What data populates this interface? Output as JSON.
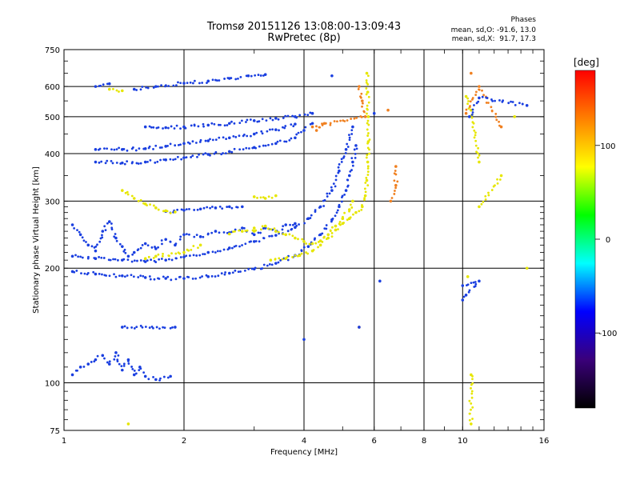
{
  "header": {
    "title": "Tromsø 20151126 13:08:00-13:09:43",
    "subtitle": "RwPretec (8p)",
    "stats_title": "Phases",
    "stats_o": "mean, sd,O: -91.6, 13.0",
    "stats_x": "mean, sd,X:  91.7, 17.3"
  },
  "chart_data": {
    "type": "scatter",
    "title": "Tromsø 20151126 13:08:00-13:09:43",
    "subtitle": "RwPretec (8p)",
    "xlabel": "Frequency [MHz]",
    "ylabel": "Stationary phase Virtual Height [km]",
    "x_scale": "log",
    "y_scale": "log",
    "xlim": [
      1,
      16
    ],
    "ylim": [
      75,
      750
    ],
    "x_ticks": [
      1,
      2,
      4,
      6,
      8,
      10,
      16
    ],
    "y_ticks": [
      75,
      100,
      200,
      300,
      400,
      500,
      600,
      750
    ],
    "grid": true,
    "colorbar": {
      "label": "[deg]",
      "range": [
        -180,
        180
      ],
      "ticks": [
        100,
        0,
        -100
      ],
      "colors": [
        "#000000",
        "#3a007a",
        "#0000ff",
        "#00ffff",
        "#00ff00",
        "#ffff00",
        "#ff8000",
        "#ff0000"
      ]
    },
    "series": [
      {
        "color": "#1a3fe0",
        "phase": -95,
        "points": [
          [
            1.05,
            196
          ],
          [
            1.2,
            193
          ],
          [
            1.4,
            191
          ],
          [
            1.6,
            189
          ],
          [
            1.8,
            188
          ],
          [
            2.0,
            188
          ],
          [
            2.3,
            190
          ],
          [
            2.6,
            194
          ],
          [
            3.0,
            199
          ],
          [
            3.4,
            206
          ],
          [
            3.8,
            216
          ],
          [
            4.1,
            228
          ],
          [
            4.4,
            245
          ],
          [
            4.7,
            268
          ],
          [
            4.9,
            290
          ],
          [
            5.1,
            320
          ],
          [
            5.2,
            350
          ],
          [
            5.3,
            380
          ],
          [
            5.4,
            420
          ]
        ]
      },
      {
        "color": "#1a3fe0",
        "phase": -95,
        "points": [
          [
            1.05,
            215
          ],
          [
            1.2,
            212
          ],
          [
            1.4,
            210
          ],
          [
            1.6,
            208
          ],
          [
            1.8,
            210
          ],
          [
            2.0,
            214
          ],
          [
            2.3,
            220
          ],
          [
            2.6,
            226
          ],
          [
            3.0,
            235
          ],
          [
            3.4,
            244
          ],
          [
            3.8,
            256
          ],
          [
            4.1,
            270
          ],
          [
            4.4,
            290
          ],
          [
            4.7,
            320
          ],
          [
            4.9,
            360
          ],
          [
            5.1,
            410
          ],
          [
            5.3,
            470
          ]
        ]
      },
      {
        "color": "#1a3fe0",
        "phase": -100,
        "points": [
          [
            1.05,
            260
          ],
          [
            1.1,
            245
          ],
          [
            1.15,
            230
          ],
          [
            1.2,
            222
          ],
          [
            1.25,
            250
          ],
          [
            1.3,
            265
          ],
          [
            1.35,
            240
          ],
          [
            1.4,
            228
          ],
          [
            1.45,
            215
          ],
          [
            1.5,
            220
          ],
          [
            1.6,
            232
          ],
          [
            1.7,
            225
          ],
          [
            1.8,
            238
          ],
          [
            1.9,
            230
          ],
          [
            2.0,
            245
          ],
          [
            2.2,
            242
          ],
          [
            2.4,
            250
          ],
          [
            2.6,
            248
          ],
          [
            2.8,
            255
          ],
          [
            3.0,
            245
          ],
          [
            3.2,
            255
          ],
          [
            3.4,
            250
          ],
          [
            3.6,
            260
          ],
          [
            3.8,
            262
          ]
        ]
      },
      {
        "color": "#1a3fe0",
        "phase": -95,
        "points": [
          [
            1.8,
            282
          ],
          [
            2.0,
            284
          ],
          [
            2.2,
            286
          ],
          [
            2.4,
            288
          ],
          [
            2.6,
            290
          ],
          [
            2.8,
            290
          ]
        ]
      },
      {
        "color": "#1a3fe0",
        "phase": -95,
        "points": [
          [
            1.2,
            380
          ],
          [
            1.4,
            378
          ],
          [
            1.6,
            380
          ],
          [
            1.8,
            385
          ],
          [
            2.0,
            390
          ],
          [
            2.3,
            398
          ],
          [
            2.6,
            405
          ],
          [
            3.0,
            415
          ],
          [
            3.4,
            425
          ],
          [
            3.8,
            440
          ],
          [
            4.0,
            460
          ],
          [
            4.2,
            480
          ]
        ]
      },
      {
        "color": "#1a3fe0",
        "phase": -95,
        "points": [
          [
            1.2,
            410
          ],
          [
            1.4,
            410
          ],
          [
            1.6,
            412
          ],
          [
            1.8,
            418
          ],
          [
            2.0,
            425
          ],
          [
            2.3,
            432
          ],
          [
            2.6,
            440
          ],
          [
            3.0,
            450
          ],
          [
            3.4,
            462
          ],
          [
            3.8,
            478
          ]
        ]
      },
      {
        "color": "#1a3fe0",
        "phase": -90,
        "points": [
          [
            1.6,
            470
          ],
          [
            1.8,
            468
          ],
          [
            2.0,
            470
          ],
          [
            2.3,
            475
          ],
          [
            2.6,
            480
          ],
          [
            3.0,
            488
          ],
          [
            3.4,
            495
          ],
          [
            3.8,
            500
          ],
          [
            4.2,
            510
          ]
        ]
      },
      {
        "color": "#1a3fe0",
        "phase": -90,
        "points": [
          [
            1.5,
            590
          ],
          [
            1.7,
            600
          ],
          [
            2.0,
            612
          ],
          [
            2.3,
            620
          ],
          [
            2.6,
            630
          ],
          [
            2.9,
            640
          ],
          [
            3.2,
            645
          ]
        ]
      },
      {
        "color": "#1a3fe0",
        "phase": -95,
        "points": [
          [
            1.05,
            105
          ],
          [
            1.1,
            110
          ],
          [
            1.15,
            112
          ],
          [
            1.2,
            115
          ],
          [
            1.25,
            118
          ],
          [
            1.3,
            112
          ],
          [
            1.35,
            120
          ],
          [
            1.4,
            108
          ],
          [
            1.45,
            115
          ],
          [
            1.5,
            105
          ],
          [
            1.55,
            110
          ],
          [
            1.6,
            104
          ],
          [
            1.7,
            102
          ],
          [
            1.85,
            104
          ]
        ]
      },
      {
        "color": "#e6e600",
        "phase": 100,
        "points": [
          [
            1.4,
            320
          ],
          [
            1.5,
            305
          ],
          [
            1.6,
            295
          ],
          [
            1.7,
            288
          ],
          [
            1.8,
            283
          ],
          [
            1.9,
            281
          ]
        ]
      },
      {
        "color": "#e6e600",
        "phase": 105,
        "points": [
          [
            3.3,
            210
          ],
          [
            3.6,
            212
          ],
          [
            3.9,
            216
          ],
          [
            4.2,
            222
          ],
          [
            4.4,
            230
          ],
          [
            4.6,
            240
          ],
          [
            4.8,
            252
          ],
          [
            5.0,
            262
          ],
          [
            5.2,
            270
          ],
          [
            5.4,
            280
          ],
          [
            5.6,
            290
          ],
          [
            5.7,
            310
          ],
          [
            5.75,
            340
          ],
          [
            5.78,
            380
          ],
          [
            5.8,
            430
          ],
          [
            5.8,
            500
          ],
          [
            5.78,
            580
          ],
          [
            5.75,
            650
          ]
        ]
      },
      {
        "color": "#e6e600",
        "phase": 100,
        "points": [
          [
            3.0,
            250
          ],
          [
            3.2,
            258
          ],
          [
            3.4,
            250
          ],
          [
            3.6,
            245
          ],
          [
            3.8,
            240
          ],
          [
            4.0,
            235
          ],
          [
            4.2,
            232
          ],
          [
            4.4,
            236
          ],
          [
            4.6,
            245
          ],
          [
            4.8,
            258
          ],
          [
            5.0,
            270
          ],
          [
            5.2,
            285
          ],
          [
            5.3,
            300
          ]
        ]
      },
      {
        "color": "#e6e600",
        "phase": 100,
        "points": [
          [
            2.6,
            246
          ],
          [
            2.8,
            250
          ],
          [
            3.0,
            255
          ],
          [
            1.6,
            212
          ],
          [
            1.7,
            215
          ],
          [
            2.0,
            220
          ],
          [
            2.2,
            230
          ]
        ]
      },
      {
        "color": "#e6e600",
        "phase": 100,
        "points": [
          [
            3.0,
            308
          ],
          [
            3.2,
            305
          ],
          [
            3.4,
            310
          ],
          [
            1.3,
            590
          ],
          [
            1.4,
            585
          ]
        ]
      },
      {
        "color": "#f08020",
        "phase": 140,
        "points": [
          [
            5.5,
            600
          ],
          [
            5.6,
            550
          ],
          [
            5.7,
            500
          ],
          [
            4.2,
            470
          ],
          [
            4.3,
            460
          ],
          [
            4.5,
            480
          ],
          [
            5.5,
            140
          ],
          [
            6.5,
            520
          ],
          [
            6.8,
            370
          ],
          [
            6.8,
            330
          ],
          [
            6.6,
            300
          ],
          [
            10.5,
            650
          ],
          [
            12.5,
            470
          ],
          [
            11.0,
            600
          ],
          [
            10.2,
            510
          ]
        ]
      },
      {
        "color": "#e6e600",
        "phase": 110,
        "points": [
          [
            10.2,
            565
          ],
          [
            10.5,
            520
          ],
          [
            11.0,
            380
          ],
          [
            10.3,
            190
          ],
          [
            10.5,
            105
          ],
          [
            10.5,
            78
          ],
          [
            13.5,
            500
          ],
          [
            12.5,
            350
          ],
          [
            11.0,
            290
          ],
          [
            14.5,
            200
          ],
          [
            1.45,
            78
          ]
        ]
      },
      {
        "color": "#1a3fe0",
        "phase": -95,
        "points": [
          [
            4.0,
            130
          ],
          [
            5.5,
            140
          ],
          [
            10.0,
            180
          ],
          [
            11.0,
            185
          ],
          [
            10.2,
            170
          ],
          [
            10.0,
            165
          ],
          [
            6.2,
            185
          ],
          [
            14.5,
            535
          ],
          [
            11.0,
            560
          ],
          [
            10.4,
            500
          ],
          [
            4.7,
            640
          ],
          [
            6.0,
            510
          ],
          [
            1.4,
            140
          ],
          [
            1.9,
            140
          ],
          [
            1.3,
            610
          ],
          [
            1.2,
            600
          ]
        ]
      }
    ]
  }
}
